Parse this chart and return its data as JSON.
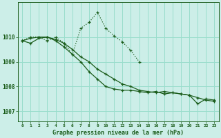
{
  "background_color": "#cceee8",
  "grid_color": "#99ddcc",
  "line_color": "#1a5c1a",
  "xlabel": "Graphe pression niveau de la mer (hPa)",
  "ylim": [
    1006.6,
    1011.4
  ],
  "yticks": [
    1007,
    1008,
    1009,
    1010
  ],
  "xlim": [
    -0.5,
    23.5
  ],
  "figsize": [
    3.2,
    2.0
  ],
  "dpi": 100,
  "series_solid1_x": [
    0,
    1,
    2,
    3,
    4,
    5,
    6,
    7,
    8,
    9,
    10,
    11,
    12,
    13,
    14,
    15,
    16,
    17,
    18,
    19,
    20,
    21,
    22,
    23
  ],
  "series_solid1_y": [
    1009.85,
    1009.95,
    1010.0,
    1010.0,
    1009.9,
    1009.75,
    1009.5,
    1009.2,
    1009.0,
    1008.7,
    1008.5,
    1008.3,
    1008.1,
    1008.0,
    1007.85,
    1007.8,
    1007.75,
    1007.8,
    1007.75,
    1007.7,
    1007.65,
    1007.55,
    1007.45,
    1007.4
  ],
  "series_solid2_x": [
    0,
    1,
    2,
    3,
    4,
    5,
    6,
    7,
    8,
    9,
    10,
    11,
    12,
    13,
    14,
    15,
    16,
    17,
    18,
    19,
    20,
    21,
    22,
    23
  ],
  "series_solid2_y": [
    1009.85,
    1009.75,
    1009.95,
    1010.0,
    1009.85,
    1009.6,
    1009.3,
    1009.0,
    1008.6,
    1008.3,
    1008.0,
    1007.9,
    1007.85,
    1007.85,
    1007.8,
    1007.75,
    1007.8,
    1007.7,
    1007.75,
    1007.7,
    1007.65,
    1007.3,
    1007.5,
    1007.45
  ],
  "series_dotted_x": [
    0,
    1,
    2,
    3,
    4,
    5,
    6,
    7,
    8,
    9,
    10,
    11,
    12,
    13,
    14
  ],
  "series_dotted_y": [
    1009.85,
    1010.0,
    1010.0,
    1009.85,
    1010.0,
    1009.75,
    1009.3,
    1010.35,
    1010.6,
    1011.0,
    1010.35,
    1010.05,
    1009.8,
    1009.45,
    1009.0
  ]
}
